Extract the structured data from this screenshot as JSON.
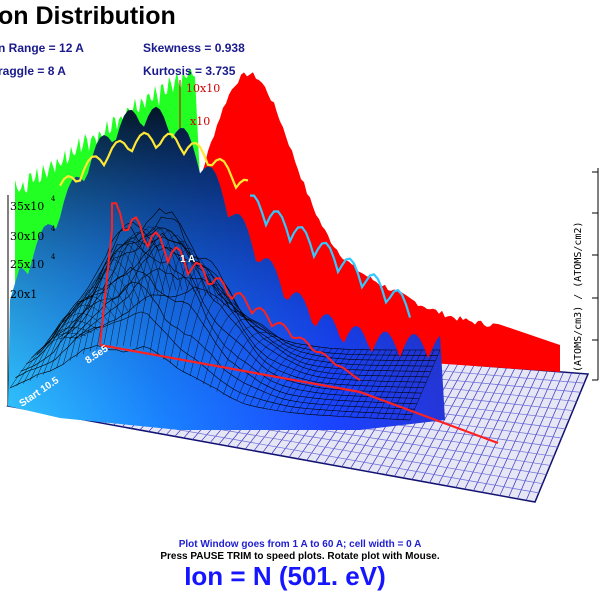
{
  "title": "on Distribution",
  "stats": {
    "ion_range": "n Range =   12 A",
    "straggle": "raggle =   8 A",
    "skewness": "Skewness = 0.938",
    "kurtosis": "Kurtosis = 3.735"
  },
  "left_axis_ticks": [
    "35x10",
    "30x10",
    "25x10",
    "20x1"
  ],
  "right_axis_label": "(ATOMS/cm3) / (ATOMS/cm2)",
  "red_axis_ticks": [
    "10x10",
    "x10"
  ],
  "inplot_labels": {
    "mid": "1 A",
    "diag1": "Start 10.5",
    "diag2": "8.5e5"
  },
  "footer": {
    "plot_window": "Plot Window goes from 1 A to 60 A;  cell width = 0 A",
    "hint": "Press PAUSE TRIM to speed plots.    Rotate plot with Mouse.",
    "ion": "Ion =  N (501. eV)"
  },
  "colors": {
    "green_series": "#22ff22",
    "red_series": "#ff0000",
    "surface_blue": "#1a3cff",
    "floor_grid": "#3636c8",
    "ion_text": "#1515ff"
  }
}
